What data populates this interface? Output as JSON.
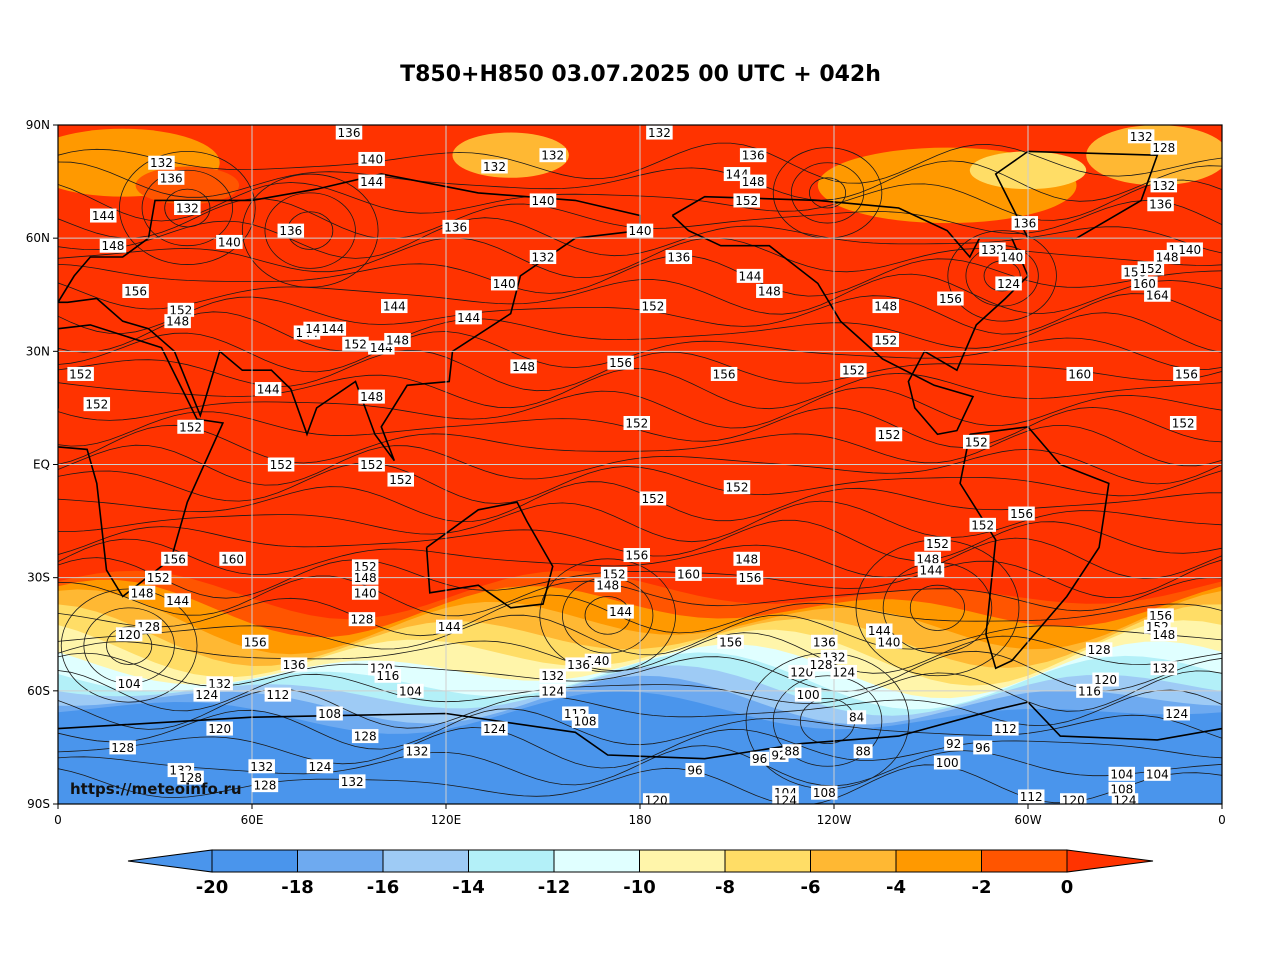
{
  "title": "T850+H850 03.07.2025 00 UTC + 042h",
  "watermark": "https://meteoinfo.ru",
  "map": {
    "lat_ticks": [
      "90N",
      "60N",
      "30N",
      "EQ",
      "30S",
      "60S",
      "90S"
    ],
    "lon_ticks": [
      "0",
      "60E",
      "120E",
      "180",
      "120W",
      "60W",
      "0"
    ],
    "fill_colors": {
      "warm": "#ff3300",
      "zero_to_minus2": "#ff5500",
      "minus2_to_minus4": "#ff9900",
      "minus4_to_minus6": "#ffb833",
      "minus6_to_minus8": "#ffdd66",
      "minus8_to_minus10": "#fff5aa",
      "minus10_to_minus12": "#e0ffff",
      "minus12_to_minus14": "#b3f0f8",
      "minus14_to_minus16": "#9ecbf5",
      "minus16_to_minus18": "#6eaaf0",
      "minus18_to_minus20": "#4a95ec"
    },
    "contour_color": "#1a1a1a",
    "coast_color": "#000000",
    "grid_color": "#cfcfcf"
  },
  "contour_labels": [
    {
      "text": "136",
      "lon": 90,
      "lat": 88
    },
    {
      "text": "132",
      "lon": 186,
      "lat": 88
    },
    {
      "text": "132",
      "lon": 335,
      "lat": 87
    },
    {
      "text": "128",
      "lon": 342,
      "lat": 84
    },
    {
      "text": "132",
      "lon": 32,
      "lat": 80
    },
    {
      "text": "136",
      "lon": 35,
      "lat": 76
    },
    {
      "text": "140",
      "lon": 97,
      "lat": 81
    },
    {
      "text": "144",
      "lon": 97,
      "lat": 75
    },
    {
      "text": "132",
      "lon": 135,
      "lat": 79
    },
    {
      "text": "132",
      "lon": 153,
      "lat": 82
    },
    {
      "text": "136",
      "lon": 215,
      "lat": 82
    },
    {
      "text": "144",
      "lon": 210,
      "lat": 77
    },
    {
      "text": "148",
      "lon": 215,
      "lat": 75
    },
    {
      "text": "132",
      "lon": 342,
      "lat": 74
    },
    {
      "text": "144",
      "lon": 14,
      "lat": 66
    },
    {
      "text": "132",
      "lon": 40,
      "lat": 68
    },
    {
      "text": "140",
      "lon": 150,
      "lat": 70
    },
    {
      "text": "152",
      "lon": 213,
      "lat": 70
    },
    {
      "text": "136",
      "lon": 341,
      "lat": 69
    },
    {
      "text": "148",
      "lon": 17,
      "lat": 58
    },
    {
      "text": "140",
      "lon": 53,
      "lat": 59
    },
    {
      "text": "136",
      "lon": 72,
      "lat": 62
    },
    {
      "text": "136",
      "lon": 123,
      "lat": 63
    },
    {
      "text": "140",
      "lon": 180,
      "lat": 62
    },
    {
      "text": "136",
      "lon": 299,
      "lat": 64
    },
    {
      "text": "132",
      "lon": 150,
      "lat": 55
    },
    {
      "text": "136",
      "lon": 192,
      "lat": 55
    },
    {
      "text": "132",
      "lon": 289,
      "lat": 57
    },
    {
      "text": "140",
      "lon": 295,
      "lat": 55
    },
    {
      "text": "146",
      "lon": 347,
      "lat": 57
    },
    {
      "text": "140",
      "lon": 350,
      "lat": 57
    },
    {
      "text": "144",
      "lon": 214,
      "lat": 50
    },
    {
      "text": "148",
      "lon": 220,
      "lat": 46
    },
    {
      "text": "156",
      "lon": 333,
      "lat": 51
    },
    {
      "text": "152",
      "lon": 338,
      "lat": 52
    },
    {
      "text": "148",
      "lon": 343,
      "lat": 55
    },
    {
      "text": "160",
      "lon": 336,
      "lat": 48
    },
    {
      "text": "164",
      "lon": 340,
      "lat": 45
    },
    {
      "text": "140",
      "lon": 138,
      "lat": 48
    },
    {
      "text": "156",
      "lon": 24,
      "lat": 46
    },
    {
      "text": "152",
      "lon": 38,
      "lat": 41
    },
    {
      "text": "148",
      "lon": 37,
      "lat": 38
    },
    {
      "text": "144",
      "lon": 104,
      "lat": 42
    },
    {
      "text": "152",
      "lon": 184,
      "lat": 42
    },
    {
      "text": "148",
      "lon": 256,
      "lat": 42
    },
    {
      "text": "156",
      "lon": 276,
      "lat": 44
    },
    {
      "text": "124",
      "lon": 294,
      "lat": 48
    },
    {
      "text": "144",
      "lon": 77,
      "lat": 35
    },
    {
      "text": "148",
      "lon": 80,
      "lat": 36
    },
    {
      "text": "144",
      "lon": 85,
      "lat": 36
    },
    {
      "text": "144",
      "lon": 127,
      "lat": 39
    },
    {
      "text": "152",
      "lon": 92,
      "lat": 32
    },
    {
      "text": "144",
      "lon": 100,
      "lat": 31
    },
    {
      "text": "148",
      "lon": 105,
      "lat": 33
    },
    {
      "text": "152",
      "lon": 256,
      "lat": 33
    },
    {
      "text": "152",
      "lon": 7,
      "lat": 24
    },
    {
      "text": "152",
      "lon": 12,
      "lat": 16
    },
    {
      "text": "144",
      "lon": 65,
      "lat": 20
    },
    {
      "text": "148",
      "lon": 97,
      "lat": 18
    },
    {
      "text": "148",
      "lon": 144,
      "lat": 26
    },
    {
      "text": "156",
      "lon": 174,
      "lat": 27
    },
    {
      "text": "156",
      "lon": 206,
      "lat": 24
    },
    {
      "text": "152",
      "lon": 246,
      "lat": 25
    },
    {
      "text": "160",
      "lon": 316,
      "lat": 24
    },
    {
      "text": "156",
      "lon": 349,
      "lat": 24
    },
    {
      "text": "152",
      "lon": 41,
      "lat": 10
    },
    {
      "text": "152",
      "lon": 179,
      "lat": 11
    },
    {
      "text": "152",
      "lon": 257,
      "lat": 8
    },
    {
      "text": "152",
      "lon": 284,
      "lat": 6
    },
    {
      "text": "152",
      "lon": 348,
      "lat": 11
    },
    {
      "text": "152",
      "lon": 69,
      "lat": 0
    },
    {
      "text": "152",
      "lon": 97,
      "lat": 0
    },
    {
      "text": "152",
      "lon": 106,
      "lat": -4
    },
    {
      "text": "152",
      "lon": 184,
      "lat": -9
    },
    {
      "text": "152",
      "lon": 210,
      "lat": -6
    },
    {
      "text": "152",
      "lon": 286,
      "lat": -16
    },
    {
      "text": "156",
      "lon": 298,
      "lat": -13
    },
    {
      "text": "156",
      "lon": 36,
      "lat": -25
    },
    {
      "text": "160",
      "lon": 54,
      "lat": -25
    },
    {
      "text": "152",
      "lon": 95,
      "lat": -27
    },
    {
      "text": "148",
      "lon": 95,
      "lat": -30
    },
    {
      "text": "140",
      "lon": 95,
      "lat": -34
    },
    {
      "text": "152",
      "lon": 31,
      "lat": -30
    },
    {
      "text": "148",
      "lon": 26,
      "lat": -34
    },
    {
      "text": "144",
      "lon": 37,
      "lat": -36
    },
    {
      "text": "156",
      "lon": 179,
      "lat": -24
    },
    {
      "text": "152",
      "lon": 172,
      "lat": -29
    },
    {
      "text": "148",
      "lon": 170,
      "lat": -32
    },
    {
      "text": "160",
      "lon": 195,
      "lat": -29
    },
    {
      "text": "148",
      "lon": 213,
      "lat": -25
    },
    {
      "text": "156",
      "lon": 214,
      "lat": -30
    },
    {
      "text": "152",
      "lon": 272,
      "lat": -21
    },
    {
      "text": "148",
      "lon": 269,
      "lat": -25
    },
    {
      "text": "144",
      "lon": 270,
      "lat": -28
    },
    {
      "text": "144",
      "lon": 174,
      "lat": -39
    },
    {
      "text": "128",
      "lon": 94,
      "lat": -41
    },
    {
      "text": "144",
      "lon": 121,
      "lat": -43
    },
    {
      "text": "128",
      "lon": 28,
      "lat": -43
    },
    {
      "text": "120",
      "lon": 22,
      "lat": -45
    },
    {
      "text": "156",
      "lon": 61,
      "lat": -47
    },
    {
      "text": "156",
      "lon": 208,
      "lat": -47
    },
    {
      "text": "136",
      "lon": 237,
      "lat": -47
    },
    {
      "text": "144",
      "lon": 254,
      "lat": -44
    },
    {
      "text": "140",
      "lon": 257,
      "lat": -47
    },
    {
      "text": "156",
      "lon": 341,
      "lat": -40
    },
    {
      "text": "152",
      "lon": 340,
      "lat": -43
    },
    {
      "text": "148",
      "lon": 342,
      "lat": -45
    },
    {
      "text": "128",
      "lon": 322,
      "lat": -49
    },
    {
      "text": "136",
      "lon": 73,
      "lat": -53
    },
    {
      "text": "120",
      "lon": 100,
      "lat": -54
    },
    {
      "text": "116",
      "lon": 102,
      "lat": -56
    },
    {
      "text": "132",
      "lon": 240,
      "lat": -51
    },
    {
      "text": "124",
      "lon": 243,
      "lat": -55
    },
    {
      "text": "120",
      "lon": 230,
      "lat": -55
    },
    {
      "text": "128",
      "lon": 236,
      "lat": -53
    },
    {
      "text": "140",
      "lon": 167,
      "lat": -52
    },
    {
      "text": "136",
      "lon": 161,
      "lat": -53
    },
    {
      "text": "132",
      "lon": 153,
      "lat": -56
    },
    {
      "text": "124",
      "lon": 153,
      "lat": -60
    },
    {
      "text": "132",
      "lon": 342,
      "lat": -54
    },
    {
      "text": "120",
      "lon": 324,
      "lat": -57
    },
    {
      "text": "116",
      "lon": 319,
      "lat": -60
    },
    {
      "text": "124",
      "lon": 346,
      "lat": -66
    },
    {
      "text": "104",
      "lon": 22,
      "lat": -58
    },
    {
      "text": "132",
      "lon": 50,
      "lat": -58
    },
    {
      "text": "124",
      "lon": 46,
      "lat": -61
    },
    {
      "text": "112",
      "lon": 68,
      "lat": -61
    },
    {
      "text": "104",
      "lon": 109,
      "lat": -60
    },
    {
      "text": "100",
      "lon": 232,
      "lat": -61
    },
    {
      "text": "108",
      "lon": 84,
      "lat": -66
    },
    {
      "text": "112",
      "lon": 160,
      "lat": -66
    },
    {
      "text": "108",
      "lon": 163,
      "lat": -68
    },
    {
      "text": "124",
      "lon": 135,
      "lat": -70
    },
    {
      "text": "84",
      "lon": 247,
      "lat": -67
    },
    {
      "text": "112",
      "lon": 293,
      "lat": -70
    },
    {
      "text": "120",
      "lon": 50,
      "lat": -70
    },
    {
      "text": "128",
      "lon": 20,
      "lat": -75
    },
    {
      "text": "128",
      "lon": 95,
      "lat": -72
    },
    {
      "text": "132",
      "lon": 111,
      "lat": -76
    },
    {
      "text": "96",
      "lon": 217,
      "lat": -78
    },
    {
      "text": "92",
      "lon": 223,
      "lat": -77
    },
    {
      "text": "88",
      "lon": 227,
      "lat": -76
    },
    {
      "text": "88",
      "lon": 249,
      "lat": -76
    },
    {
      "text": "92",
      "lon": 277,
      "lat": -74
    },
    {
      "text": "96",
      "lon": 286,
      "lat": -75
    },
    {
      "text": "100",
      "lon": 275,
      "lat": -79
    },
    {
      "text": "96",
      "lon": 197,
      "lat": -81
    },
    {
      "text": "132",
      "lon": 38,
      "lat": -81
    },
    {
      "text": "128",
      "lon": 41,
      "lat": -83
    },
    {
      "text": "132",
      "lon": 63,
      "lat": -80
    },
    {
      "text": "128",
      "lon": 64,
      "lat": -85
    },
    {
      "text": "124",
      "lon": 81,
      "lat": -80
    },
    {
      "text": "132",
      "lon": 91,
      "lat": -84
    },
    {
      "text": "104",
      "lon": 329,
      "lat": -82
    },
    {
      "text": "104",
      "lon": 340,
      "lat": -82
    },
    {
      "text": "108",
      "lon": 329,
      "lat": -86
    },
    {
      "text": "104",
      "lon": 225,
      "lat": -87
    },
    {
      "text": "108",
      "lon": 237,
      "lat": -87
    },
    {
      "text": "124",
      "lon": 225,
      "lat": -89
    },
    {
      "text": "112",
      "lon": 301,
      "lat": -88
    },
    {
      "text": "120",
      "lon": 314,
      "lat": -89
    },
    {
      "text": "124",
      "lon": 330,
      "lat": -89
    },
    {
      "text": "120",
      "lon": 185,
      "lat": -89
    }
  ],
  "colorbar": {
    "labels": [
      "-20",
      "-18",
      "-16",
      "-14",
      "-12",
      "-10",
      "-8",
      "-6",
      "-4",
      "-2",
      "0"
    ],
    "colors": [
      "#4a95ec",
      "#4a95ec",
      "#6eaaf0",
      "#9ecbf5",
      "#b3f0f8",
      "#e0ffff",
      "#fff5aa",
      "#ffdd66",
      "#ffb833",
      "#ff9900",
      "#ff5500",
      "#ff3300"
    ]
  }
}
